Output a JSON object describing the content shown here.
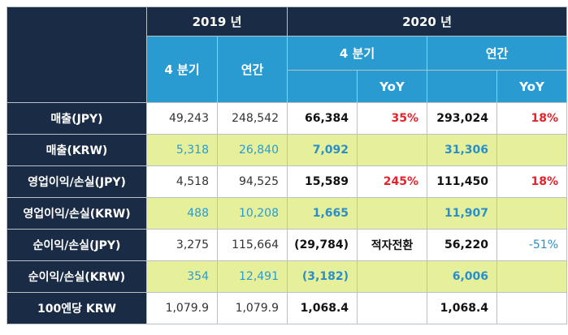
{
  "header": {
    "year2019": "2019 년",
    "year2020": "2020 년",
    "q4_2019": "4 분기",
    "annual_2019": "연간",
    "q4_2020": "4 분기",
    "annual_2020": "연간",
    "yoy1": "YoY",
    "yoy2": "YoY"
  },
  "rows": [
    {
      "label": "매출(JPY)",
      "q4_2019": "49,243",
      "annual_2019": "248,542",
      "q4_2020": "66,384",
      "q4_yoy": "35%",
      "annual_2020": "293,024",
      "annual_yoy": "18%"
    },
    {
      "label": "매출(KRW)",
      "q4_2019": "5,318",
      "annual_2019": "26,840",
      "q4_2020": "7,092",
      "q4_yoy": "",
      "annual_2020": "31,306",
      "annual_yoy": ""
    },
    {
      "label": "영업이익/손실(JPY)",
      "q4_2019": "4,518",
      "annual_2019": "94,525",
      "q4_2020": "15,589",
      "q4_yoy": "245%",
      "annual_2020": "111,450",
      "annual_yoy": "18%"
    },
    {
      "label": "영업이익/손실(KRW)",
      "q4_2019": "488",
      "annual_2019": "10,208",
      "q4_2020": "1,665",
      "q4_yoy": "",
      "annual_2020": "11,907",
      "annual_yoy": ""
    },
    {
      "label": "순이익/손실(JPY)",
      "q4_2019": "3,275",
      "annual_2019": "115,664",
      "q4_2020": "(29,784)",
      "q4_yoy": "적자전환",
      "annual_2020": "56,220",
      "annual_yoy": "-51%"
    },
    {
      "label": "순이익/손실(KRW)",
      "q4_2019": "354",
      "annual_2019": "12,491",
      "q4_2020": "(3,182)",
      "q4_yoy": "",
      "annual_2020": "6,006",
      "annual_yoy": ""
    },
    {
      "label": "100엔당 KRW",
      "q4_2019": "1,079.9",
      "annual_2019": "1,079.9",
      "q4_2020": "1,068.4",
      "q4_yoy": "",
      "annual_2020": "1,068.4",
      "annual_yoy": ""
    }
  ],
  "colors": {
    "navy": "#1a2b45",
    "blue": "#2a9bd0",
    "green": "#e6f09a",
    "red": "#e8202a"
  }
}
